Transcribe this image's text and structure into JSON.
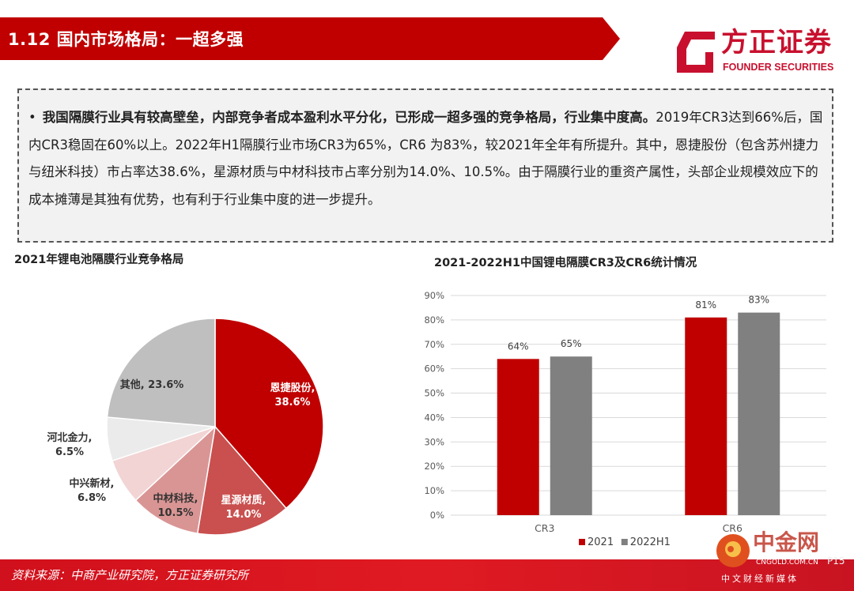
{
  "header": {
    "title": "1.12 国内市场格局：一超多强",
    "logo_cn": "方正证券",
    "logo_en": "FOUNDER SECURITIES",
    "accent_color": "#c00000"
  },
  "summary": {
    "bold_text": "我国隔膜行业具有较高壁垒，内部竞争者成本盈利水平分化，已形成一超多强的竞争格局，行业集中度高。",
    "body_text": "2019年CR3达到66%后，国内CR3稳固在60%以上。2022年H1隔膜行业市场CR3为65%，CR6 为83%，较2021年全年有所提升。其中，恩捷股份（包含苏州捷力与纽米科技）市占率达38.6%，星源材质与中材科技市占率分别为14.0%、10.5%。由于隔膜行业的重资产属性，头部企业规模效应下的成本摊薄是其独有优势，也有利于行业集中度的进一步提升。"
  },
  "chart_data": [
    {
      "type": "pie",
      "title": "2021年锂电池隔膜行业竞争格局",
      "slices": [
        {
          "label": "恩捷股份",
          "value": 38.6,
          "display": "38.6%",
          "color": "#c00000"
        },
        {
          "label": "星源材质",
          "value": 14.0,
          "display": "14.0%",
          "color": "#c9504f"
        },
        {
          "label": "中材科技",
          "value": 10.5,
          "display": "10.5%",
          "color": "#d99594"
        },
        {
          "label": "中兴新材",
          "value": 6.8,
          "display": "6.8%",
          "color": "#f2d4d4"
        },
        {
          "label": "河北金力",
          "value": 6.5,
          "display": "6.5%",
          "color": "#ebebeb"
        },
        {
          "label": "其他",
          "value": 23.6,
          "display": "23.6%",
          "color": "#bfbfbf"
        }
      ]
    },
    {
      "type": "bar",
      "title": "2021-2022H1中国锂电隔膜CR3及CR6统计情况",
      "categories": [
        "CR3",
        "CR6"
      ],
      "series": [
        {
          "name": "2021",
          "values": [
            64,
            81
          ],
          "labels": [
            "64%",
            "81%"
          ],
          "color": "#c00000"
        },
        {
          "name": "2022H1",
          "values": [
            65,
            83
          ],
          "labels": [
            "65%",
            "83%"
          ],
          "color": "#808080"
        }
      ],
      "ylim": [
        0,
        90
      ],
      "yticks": [
        "0%",
        "10%",
        "20%",
        "30%",
        "40%",
        "50%",
        "60%",
        "70%",
        "80%",
        "90%"
      ],
      "grid": true,
      "legend": "bottom"
    }
  ],
  "footer": {
    "source": "资料来源：中商产业研究院，方正证券研究所",
    "page": "P15"
  },
  "watermark": {
    "cn": "中金网",
    "en": "CNGOLD.COM.CN",
    "sub": "中文财经新媒体"
  }
}
